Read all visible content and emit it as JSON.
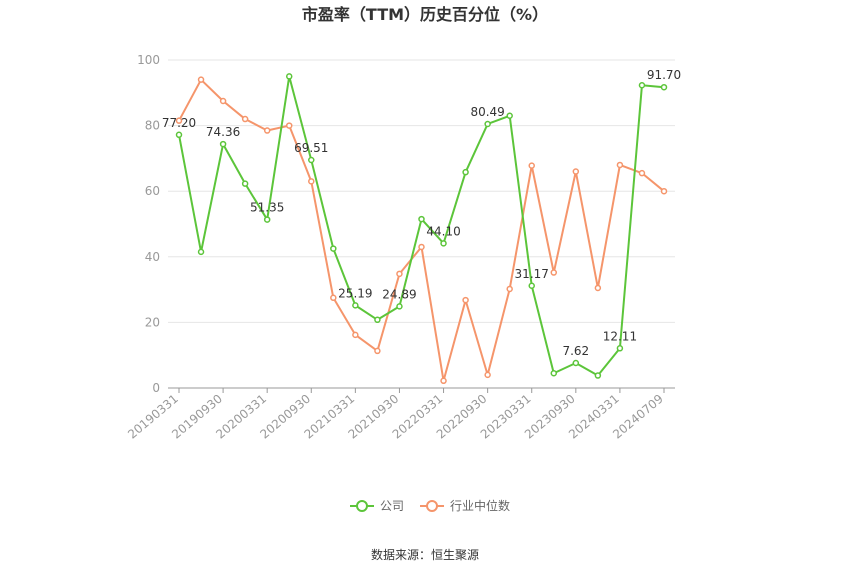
{
  "chart_data": {
    "type": "line",
    "title": "市盈率（TTM）历史百分位（%）",
    "source": "数据来源：恒生聚源",
    "ylim": [
      0,
      100
    ],
    "yticks": [
      0,
      20,
      40,
      60,
      80,
      100
    ],
    "x": [
      "20190331",
      "20190630",
      "20190930",
      "20191231",
      "20200331",
      "20200630",
      "20200930",
      "20201231",
      "20210331",
      "20210630",
      "20210930",
      "20211231",
      "20220331",
      "20220630",
      "20220930",
      "20221231",
      "20230331",
      "20230630",
      "20230930",
      "20231231",
      "20240331",
      "20240630",
      "20240709"
    ],
    "xtick_labels": [
      "20190331",
      "20190930",
      "20200331",
      "20200930",
      "20210331",
      "20210930",
      "20220331",
      "20220930",
      "20230331",
      "20230930",
      "20240331",
      "20240709"
    ],
    "grid": true,
    "legend_position": "bottom",
    "series": [
      {
        "name": "公司",
        "color": "#5cc53a",
        "values": [
          77.2,
          41.5,
          74.36,
          62.3,
          51.35,
          95.0,
          69.51,
          42.5,
          25.19,
          20.8,
          24.89,
          51.5,
          44.1,
          65.8,
          80.49,
          83.0,
          31.17,
          4.5,
          7.62,
          3.8,
          12.11,
          92.3,
          91.7
        ],
        "labels": [
          "77.20",
          "",
          "74.36",
          "",
          "51.35",
          "",
          "69.51",
          "",
          "25.19",
          "",
          "24.89",
          "",
          "44.10",
          "",
          "80.49",
          "",
          "31.17",
          "",
          "7.62",
          "",
          "12.11",
          "",
          "91.70"
        ]
      },
      {
        "name": "行业中位数",
        "color": "#f5956b",
        "values": [
          81.5,
          94.0,
          87.5,
          82.0,
          78.5,
          80.0,
          63.0,
          27.5,
          16.2,
          11.3,
          34.8,
          43.0,
          2.2,
          26.8,
          4.0,
          30.2,
          67.8,
          35.2,
          66.0,
          30.5,
          68.0,
          65.5,
          60.0
        ],
        "labels": []
      }
    ]
  }
}
